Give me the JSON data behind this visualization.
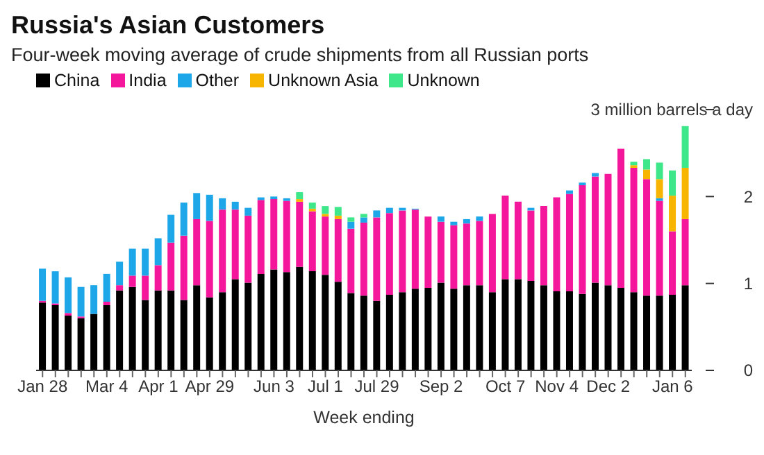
{
  "chart_data": {
    "type": "bar",
    "title": "Russia's Asian Customers",
    "subtitle": "Four-week moving average of crude shipments from all Russian ports",
    "xlabel": "Week ending",
    "stacked": true,
    "legend": "top left",
    "grid": false,
    "categories": [
      "Jan 28",
      null,
      null,
      null,
      null,
      "Mar 4",
      null,
      null,
      null,
      "Apr 1",
      null,
      null,
      null,
      "Apr 29",
      null,
      null,
      null,
      null,
      "Jun 3",
      null,
      null,
      null,
      "Jul 1",
      null,
      null,
      null,
      "Jul 29",
      null,
      null,
      null,
      null,
      "Sep 2",
      null,
      null,
      null,
      null,
      "Oct 7",
      null,
      null,
      null,
      "Nov 4",
      null,
      null,
      null,
      "Dec 2",
      null,
      null,
      null,
      null,
      "Jan 6",
      null
    ],
    "ylim": [
      0,
      3
    ],
    "yticks": [
      0,
      1,
      2,
      {
        "value": 3,
        "label": "3 million barrels a day"
      }
    ],
    "series": [
      {
        "name": "China",
        "color": "#000000",
        "values": [
          0.78,
          0.75,
          0.63,
          0.6,
          0.65,
          0.75,
          0.92,
          0.96,
          0.81,
          0.92,
          0.92,
          0.81,
          0.98,
          0.84,
          0.9,
          1.05,
          1.01,
          1.11,
          1.16,
          1.13,
          1.19,
          1.14,
          1.1,
          1.02,
          0.89,
          0.86,
          0.8,
          0.87,
          0.9,
          0.94,
          0.95,
          1.01,
          0.94,
          0.98,
          0.98,
          0.9,
          1.05,
          1.05,
          1.03,
          0.98,
          0.91,
          0.91,
          0.88,
          1.01,
          0.98,
          0.95,
          0.9,
          0.86,
          0.86,
          0.87,
          0.98
        ]
      },
      {
        "name": "India",
        "color": "#f5179b",
        "values": [
          0.02,
          0.02,
          0.03,
          0.02,
          0,
          0.04,
          0.06,
          0.13,
          0.28,
          0.29,
          0.55,
          0.74,
          0.76,
          0.88,
          0.95,
          0.8,
          0.77,
          0.85,
          0.81,
          0.82,
          0.75,
          0.69,
          0.67,
          0.72,
          0.74,
          0.84,
          0.96,
          0.94,
          0.94,
          0.91,
          0.82,
          0.7,
          0.73,
          0.71,
          0.74,
          0.9,
          0.96,
          0.89,
          0.81,
          0.91,
          1.08,
          1.12,
          1.25,
          1.22,
          1.28,
          1.6,
          1.43,
          1.34,
          1.09,
          0.73,
          0.76
        ]
      },
      {
        "name": "Other",
        "color": "#1ea7e8",
        "values": [
          0.37,
          0.37,
          0.41,
          0.34,
          0.33,
          0.32,
          0.27,
          0.31,
          0.31,
          0.31,
          0.32,
          0.38,
          0.3,
          0.3,
          0.13,
          0.09,
          0.09,
          0.03,
          0.03,
          0.03,
          0,
          0,
          0,
          0,
          0.08,
          0.06,
          0.08,
          0.06,
          0.03,
          0.01,
          0,
          0.06,
          0.04,
          0.05,
          0.05,
          0,
          0,
          0,
          0.03,
          0,
          0,
          0.04,
          0.03,
          0.04,
          0,
          0,
          0,
          0,
          0.03,
          0,
          0
        ]
      },
      {
        "name": "Unknown Asia",
        "color": "#f7b500",
        "values": [
          0,
          0,
          0,
          0,
          0,
          0,
          0,
          0,
          0,
          0,
          0,
          0,
          0,
          0,
          0,
          0,
          0,
          0,
          0,
          0,
          0.03,
          0.03,
          0.03,
          0.04,
          0,
          0,
          0,
          0,
          0,
          0,
          0,
          0,
          0,
          0,
          0,
          0,
          0,
          0,
          0,
          0,
          0,
          0,
          0,
          0,
          0,
          0,
          0.03,
          0.11,
          0.22,
          0.41,
          0.59
        ]
      },
      {
        "name": "Unknown",
        "color": "#3ee88a",
        "values": [
          0,
          0,
          0,
          0,
          0,
          0,
          0,
          0,
          0,
          0,
          0,
          0,
          0,
          0,
          0,
          0,
          0,
          0,
          0,
          0,
          0.08,
          0.07,
          0.09,
          0.1,
          0.05,
          0.04,
          0,
          0,
          0,
          0,
          0,
          0,
          0,
          0,
          0,
          0,
          0,
          0,
          0,
          0,
          0,
          0,
          0,
          0,
          0,
          0,
          0.04,
          0.12,
          0.19,
          0.29,
          0.48
        ]
      }
    ]
  }
}
